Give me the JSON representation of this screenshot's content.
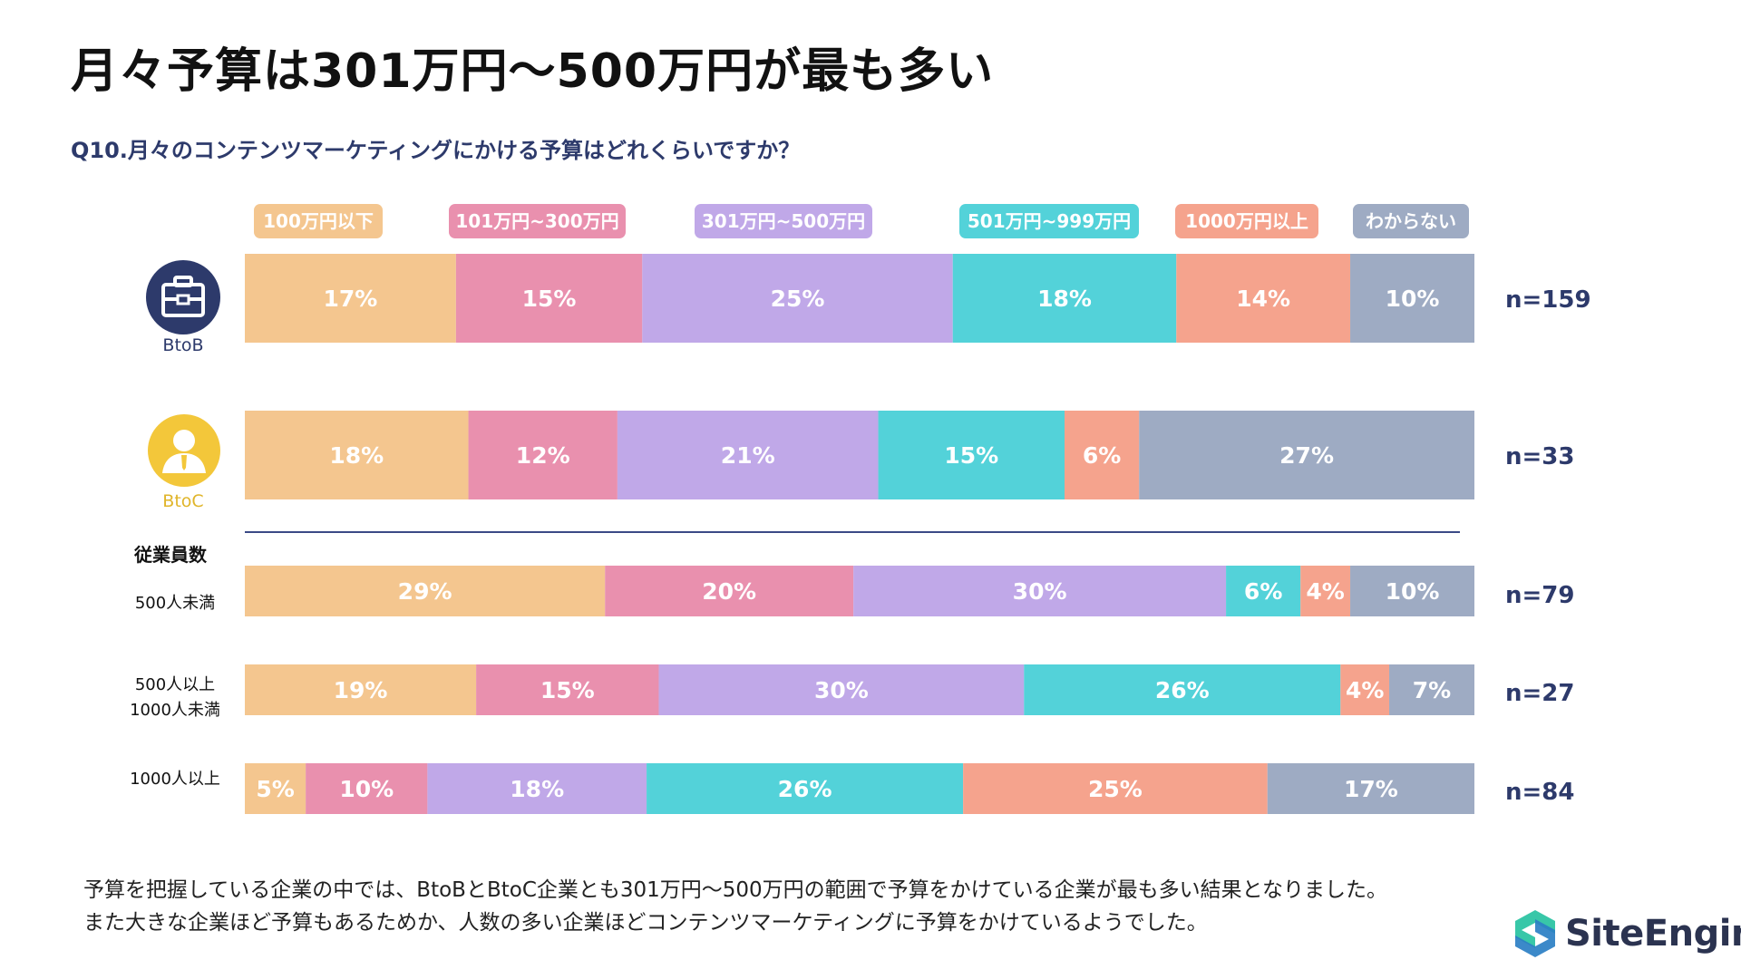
{
  "title": "月々予算は301万円〜500万円が最も多い",
  "question": "Q10.月々のコンテンツマーケティングにかける予算はどれくらいですか？",
  "chart_data": {
    "type": "bar",
    "orientation": "horizontal",
    "stacked": true,
    "normalized_percent": true,
    "categories": [
      "100万円以下",
      "101万円~300万円",
      "301万円~500万円",
      "501万円~999万円",
      "1000万円以上",
      "わからない"
    ],
    "colors": [
      "#f4c68f",
      "#e990ae",
      "#c0a8e8",
      "#53d2d9",
      "#f5a38d",
      "#9eabc3"
    ],
    "rows": [
      {
        "label": "BtoB",
        "n": "n=159",
        "values": [
          17,
          15,
          25,
          18,
          14,
          10
        ]
      },
      {
        "label": "BtoC",
        "n": "n=33",
        "values": [
          18,
          12,
          21,
          15,
          6,
          27
        ]
      },
      {
        "label": "500人未満",
        "n": "n=79",
        "values": [
          29,
          20,
          30,
          6,
          4,
          10
        ]
      },
      {
        "label": "500人以上\n1000人未満",
        "n": "n=27",
        "values": [
          19,
          15,
          30,
          26,
          4,
          7
        ]
      },
      {
        "label": "1000人以上",
        "n": "n=84",
        "values": [
          5,
          10,
          18,
          26,
          25,
          17
        ]
      }
    ],
    "value_suffix": "%"
  },
  "icons": {
    "btob": {
      "name": "briefcase-icon",
      "caption": "BtoB",
      "color": "#2d3a6b"
    },
    "btoc": {
      "name": "person-icon",
      "caption": "BtoC",
      "color": "#f3c73a"
    }
  },
  "section_label": "従業員数",
  "description": [
    "予算を把握している企業の中では、BtoBとBtoC企業とも301万円〜500万円の範囲で予算をかけている企業が最も多い結果となりました。",
    "また大きな企業ほど予算もあるためか、人数の多い企業ほどコンテンツマーケティングに予算をかけているようでした。"
  ],
  "logo": {
    "text": "SiteEngine",
    "icon": "site-engine-logo-icon",
    "colors": [
      "#38c7a8",
      "#2b7fc4"
    ]
  }
}
